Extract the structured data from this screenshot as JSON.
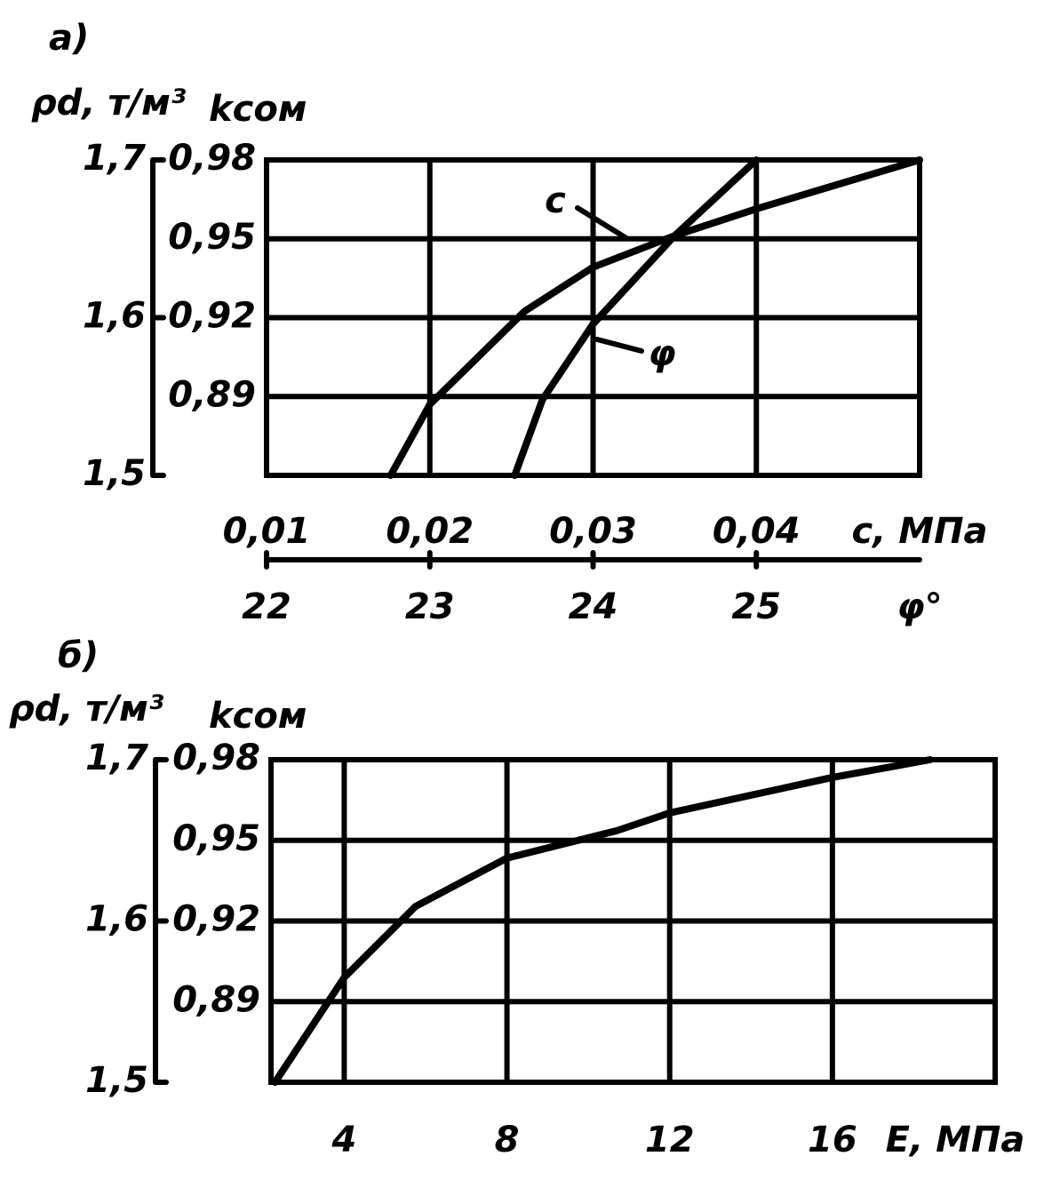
{
  "chart_data": [
    {
      "type": "line",
      "title": "а)",
      "ylabel": "ρd, т/м³",
      "y2label": "kсом",
      "xlabel": "c, МПа",
      "x2label": "φ°",
      "xlim": [
        0.01,
        0.05
      ],
      "xticks": [
        {
          "value": 0.01,
          "label": "0,01"
        },
        {
          "value": 0.02,
          "label": "0,02"
        },
        {
          "value": 0.03,
          "label": "0,03"
        },
        {
          "value": 0.04,
          "label": "0,04"
        }
      ],
      "x2lim": [
        22,
        26
      ],
      "x2ticks": [
        22,
        23,
        24,
        25
      ],
      "ylim": [
        1.5,
        1.7
      ],
      "yticks": [
        {
          "value": 1.5,
          "label": "1,5"
        },
        {
          "value": 1.6,
          "label": "1,6"
        },
        {
          "value": 1.7,
          "label": "1,7"
        }
      ],
      "y2lim": [
        0.86,
        0.98
      ],
      "y2ticks": [
        {
          "value": 0.89,
          "label": "0,89"
        },
        {
          "value": 0.92,
          "label": "0,92"
        },
        {
          "value": 0.95,
          "label": "0,95"
        },
        {
          "value": 0.98,
          "label": "0,98"
        }
      ],
      "grid": true,
      "series": [
        {
          "name": "c",
          "color": "#000000",
          "x": [
            0.0176,
            0.02,
            0.0258,
            0.03,
            0.035,
            0.04,
            0.05
          ],
          "values": [
            1.5,
            1.545,
            1.604,
            1.632,
            1.652,
            1.669,
            1.7
          ]
        },
        {
          "name": "φ",
          "color": "#000000",
          "axis": "x2",
          "x": [
            23.52,
            23.69,
            24.0,
            24.5,
            25.0
          ],
          "values": [
            1.5,
            1.548,
            1.596,
            1.652,
            1.7
          ]
        }
      ]
    },
    {
      "type": "line",
      "title": "б)",
      "ylabel": "ρd, т/м³",
      "y2label": "kсом",
      "xlabel": "E, МПа",
      "xlim": [
        2.2,
        20
      ],
      "xticks": [
        4,
        8,
        12,
        16
      ],
      "ylim": [
        1.5,
        1.7
      ],
      "yticks": [
        {
          "value": 1.5,
          "label": "1,5"
        },
        {
          "value": 1.6,
          "label": "1,6"
        },
        {
          "value": 1.7,
          "label": "1,7"
        }
      ],
      "y2lim": [
        0.86,
        0.98
      ],
      "y2ticks": [
        {
          "value": 0.89,
          "label": "0,89"
        },
        {
          "value": 0.92,
          "label": "0,92"
        },
        {
          "value": 0.95,
          "label": "0,95"
        },
        {
          "value": 0.98,
          "label": "0,98"
        }
      ],
      "grid": true,
      "color": "#000000",
      "x": [
        2.3,
        4,
        5.75,
        8,
        10.7,
        12,
        16,
        18.4
      ],
      "values": [
        1.5,
        1.565,
        1.609,
        1.639,
        1.656,
        1.667,
        1.689,
        1.7
      ]
    }
  ]
}
